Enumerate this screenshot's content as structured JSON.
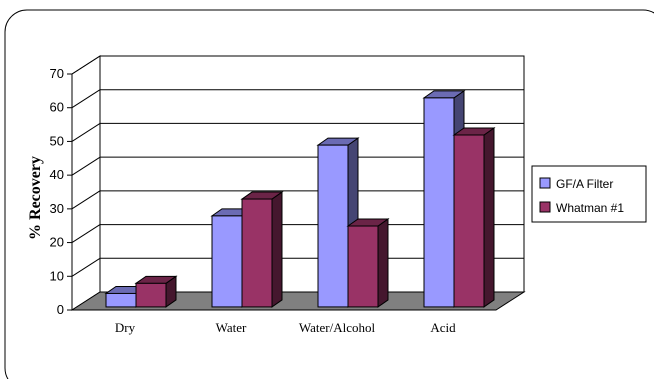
{
  "chart_data": {
    "type": "bar",
    "style": "3d-clustered-column",
    "title": "",
    "xlabel": "",
    "ylabel": "% Recovery",
    "ylim": [
      0,
      70
    ],
    "yticks": [
      0,
      10,
      20,
      30,
      40,
      50,
      60,
      70
    ],
    "grid": true,
    "legend_position": "right",
    "categories": [
      "Dry",
      "Water",
      "Water/Alcohol",
      "Acid"
    ],
    "series": [
      {
        "name": "GF/A Filter",
        "color": "#9999ff",
        "values": [
          4,
          27,
          48,
          62
        ]
      },
      {
        "name": "Whatman #1",
        "color": "#993366",
        "values": [
          7,
          32,
          24,
          51
        ]
      }
    ]
  }
}
